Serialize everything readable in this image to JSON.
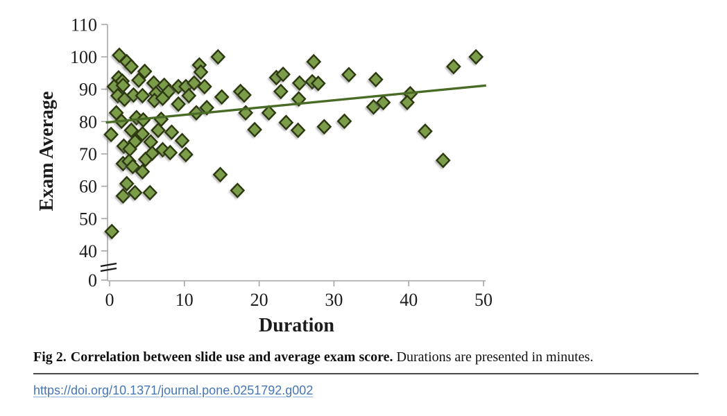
{
  "figure": {
    "caption_label": "Fig 2.",
    "caption_bold": "Correlation between slide use and average exam score.",
    "caption_rest": "Durations are presented in minutes.",
    "doi_link": "https://doi.org/10.1371/journal.pone.0251792.g002"
  },
  "chart_data": {
    "type": "scatter",
    "title": "",
    "xlabel": "Duration",
    "ylabel": "Exam Average",
    "x_ticks": [
      0,
      10,
      20,
      30,
      40,
      50
    ],
    "y_ticks": [
      0,
      40,
      50,
      60,
      70,
      80,
      90,
      100,
      110
    ],
    "y_axis_break_between": [
      0,
      40
    ],
    "xlim": [
      0,
      50
    ],
    "ylim": [
      40,
      110
    ],
    "grid": false,
    "legend": "none",
    "marker": "diamond",
    "colors": {
      "marker_fill": "#7b9d4a",
      "marker_edge": "#2c380f",
      "trend_line": "#4a6b25",
      "axis": "#a6a6a6",
      "tick_text": "#1c1c1c"
    },
    "trend_line": {
      "x1": -0.5,
      "y1": 79.7,
      "x2": 50.35,
      "y2": 91.15
    },
    "points": [
      [
        1.3,
        100.5
      ],
      [
        2.3,
        98.5
      ],
      [
        2.9,
        97
      ],
      [
        4.7,
        95.5
      ],
      [
        1.2,
        93.5
      ],
      [
        1.7,
        92.5
      ],
      [
        12,
        97.5
      ],
      [
        12.2,
        95.3
      ],
      [
        14.5,
        100
      ],
      [
        27.3,
        98.5
      ],
      [
        22.3,
        93.6
      ],
      [
        23.2,
        94.6
      ],
      [
        32,
        94.5
      ],
      [
        35.6,
        93
      ],
      [
        46,
        97
      ],
      [
        49,
        100
      ],
      [
        0.6,
        90.8
      ],
      [
        1.8,
        91.2
      ],
      [
        3.9,
        92.8
      ],
      [
        5.9,
        91.9
      ],
      [
        7.3,
        91.2
      ],
      [
        6.2,
        88.7
      ],
      [
        7.9,
        89.3
      ],
      [
        9.2,
        90.8
      ],
      [
        10.2,
        90.8
      ],
      [
        11.3,
        91.9
      ],
      [
        12.7,
        90.8
      ],
      [
        10.6,
        88
      ],
      [
        1.1,
        88
      ],
      [
        2,
        86.9
      ],
      [
        3.2,
        88.2
      ],
      [
        4.4,
        88
      ],
      [
        6,
        86.5
      ],
      [
        7.1,
        87.2
      ],
      [
        9.2,
        85.4
      ],
      [
        15,
        87.6
      ],
      [
        17.5,
        89.3
      ],
      [
        18,
        88.2
      ],
      [
        22.9,
        89.3
      ],
      [
        25.4,
        91.9
      ],
      [
        27.1,
        92.3
      ],
      [
        27.9,
        91.8
      ],
      [
        25.3,
        87
      ],
      [
        40.2,
        88.6
      ],
      [
        39.8,
        85.9
      ],
      [
        35.3,
        84.5
      ],
      [
        36.6,
        85.9
      ],
      [
        0.9,
        82.7
      ],
      [
        1.6,
        80.1
      ],
      [
        3.6,
        81.2
      ],
      [
        4.5,
        80.5
      ],
      [
        6.9,
        80.7
      ],
      [
        11.6,
        82.7
      ],
      [
        13,
        84.3
      ],
      [
        18.2,
        82.7
      ],
      [
        21.3,
        82.7
      ],
      [
        31.4,
        80.1
      ],
      [
        23.6,
        79.7
      ],
      [
        0.2,
        76
      ],
      [
        2.9,
        77.3
      ],
      [
        4.4,
        76.2
      ],
      [
        6.5,
        77.3
      ],
      [
        8.3,
        76.7
      ],
      [
        3.4,
        73.8
      ],
      [
        5.5,
        73.7
      ],
      [
        9.7,
        74.1
      ],
      [
        19.4,
        77.5
      ],
      [
        25.2,
        77.3
      ],
      [
        28.7,
        78.4
      ],
      [
        42.2,
        77
      ],
      [
        1.9,
        72.4
      ],
      [
        2.7,
        71.5
      ],
      [
        7.1,
        71.3
      ],
      [
        5.7,
        70.2
      ],
      [
        8.1,
        70.4
      ],
      [
        10.2,
        69.8
      ],
      [
        1.8,
        67
      ],
      [
        2.6,
        67.7
      ],
      [
        4.8,
        68.3
      ],
      [
        3.1,
        66.1
      ],
      [
        4.4,
        64.5
      ],
      [
        14.8,
        63.6
      ],
      [
        44.6,
        68
      ],
      [
        2.3,
        60.8
      ],
      [
        1.8,
        57
      ],
      [
        3.4,
        58
      ],
      [
        5.4,
        58
      ],
      [
        17.1,
        58.7
      ],
      [
        0.3,
        46
      ]
    ]
  }
}
